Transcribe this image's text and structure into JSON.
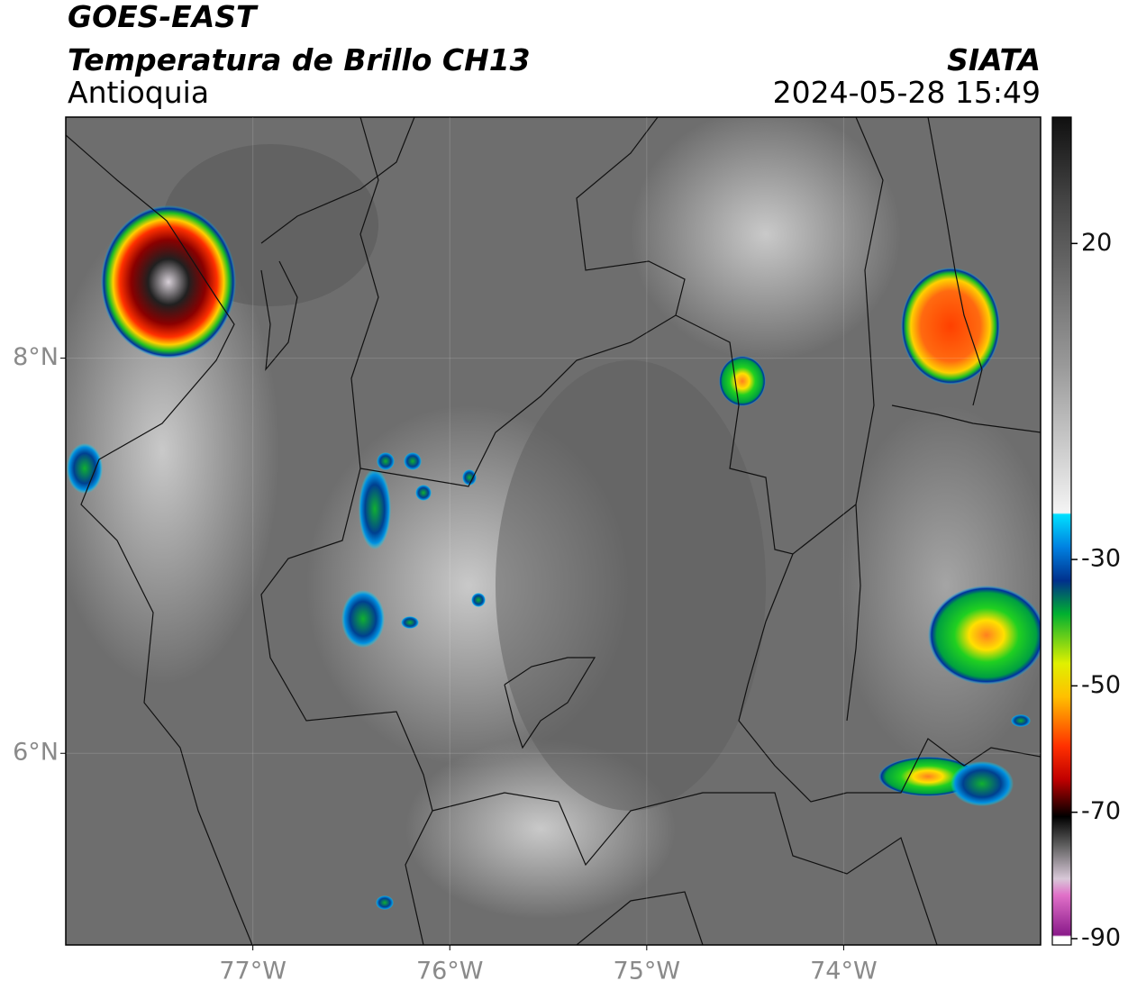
{
  "header": {
    "satellite": "GOES-EAST",
    "product": "Temperatura de Brillo CH13",
    "region": "Antioquia",
    "source": "SIATA",
    "datetime": "2024-05-28 15:49"
  },
  "map": {
    "xlim": [
      -77.95,
      -73
    ],
    "ylim": [
      5.03,
      9.22
    ],
    "xticks": [
      {
        "value": -77,
        "label": "77°W"
      },
      {
        "value": -76,
        "label": "76°W"
      },
      {
        "value": -75,
        "label": "75°W"
      },
      {
        "value": -74,
        "label": "74°W"
      }
    ],
    "yticks": [
      {
        "value": 8,
        "label": "8°N"
      },
      {
        "value": 6,
        "label": "6°N"
      }
    ],
    "grid": true
  },
  "colorbar": {
    "clim": [
      -91,
      40
    ],
    "ticks": [
      20,
      -30,
      -50,
      -70,
      -90
    ]
  }
}
